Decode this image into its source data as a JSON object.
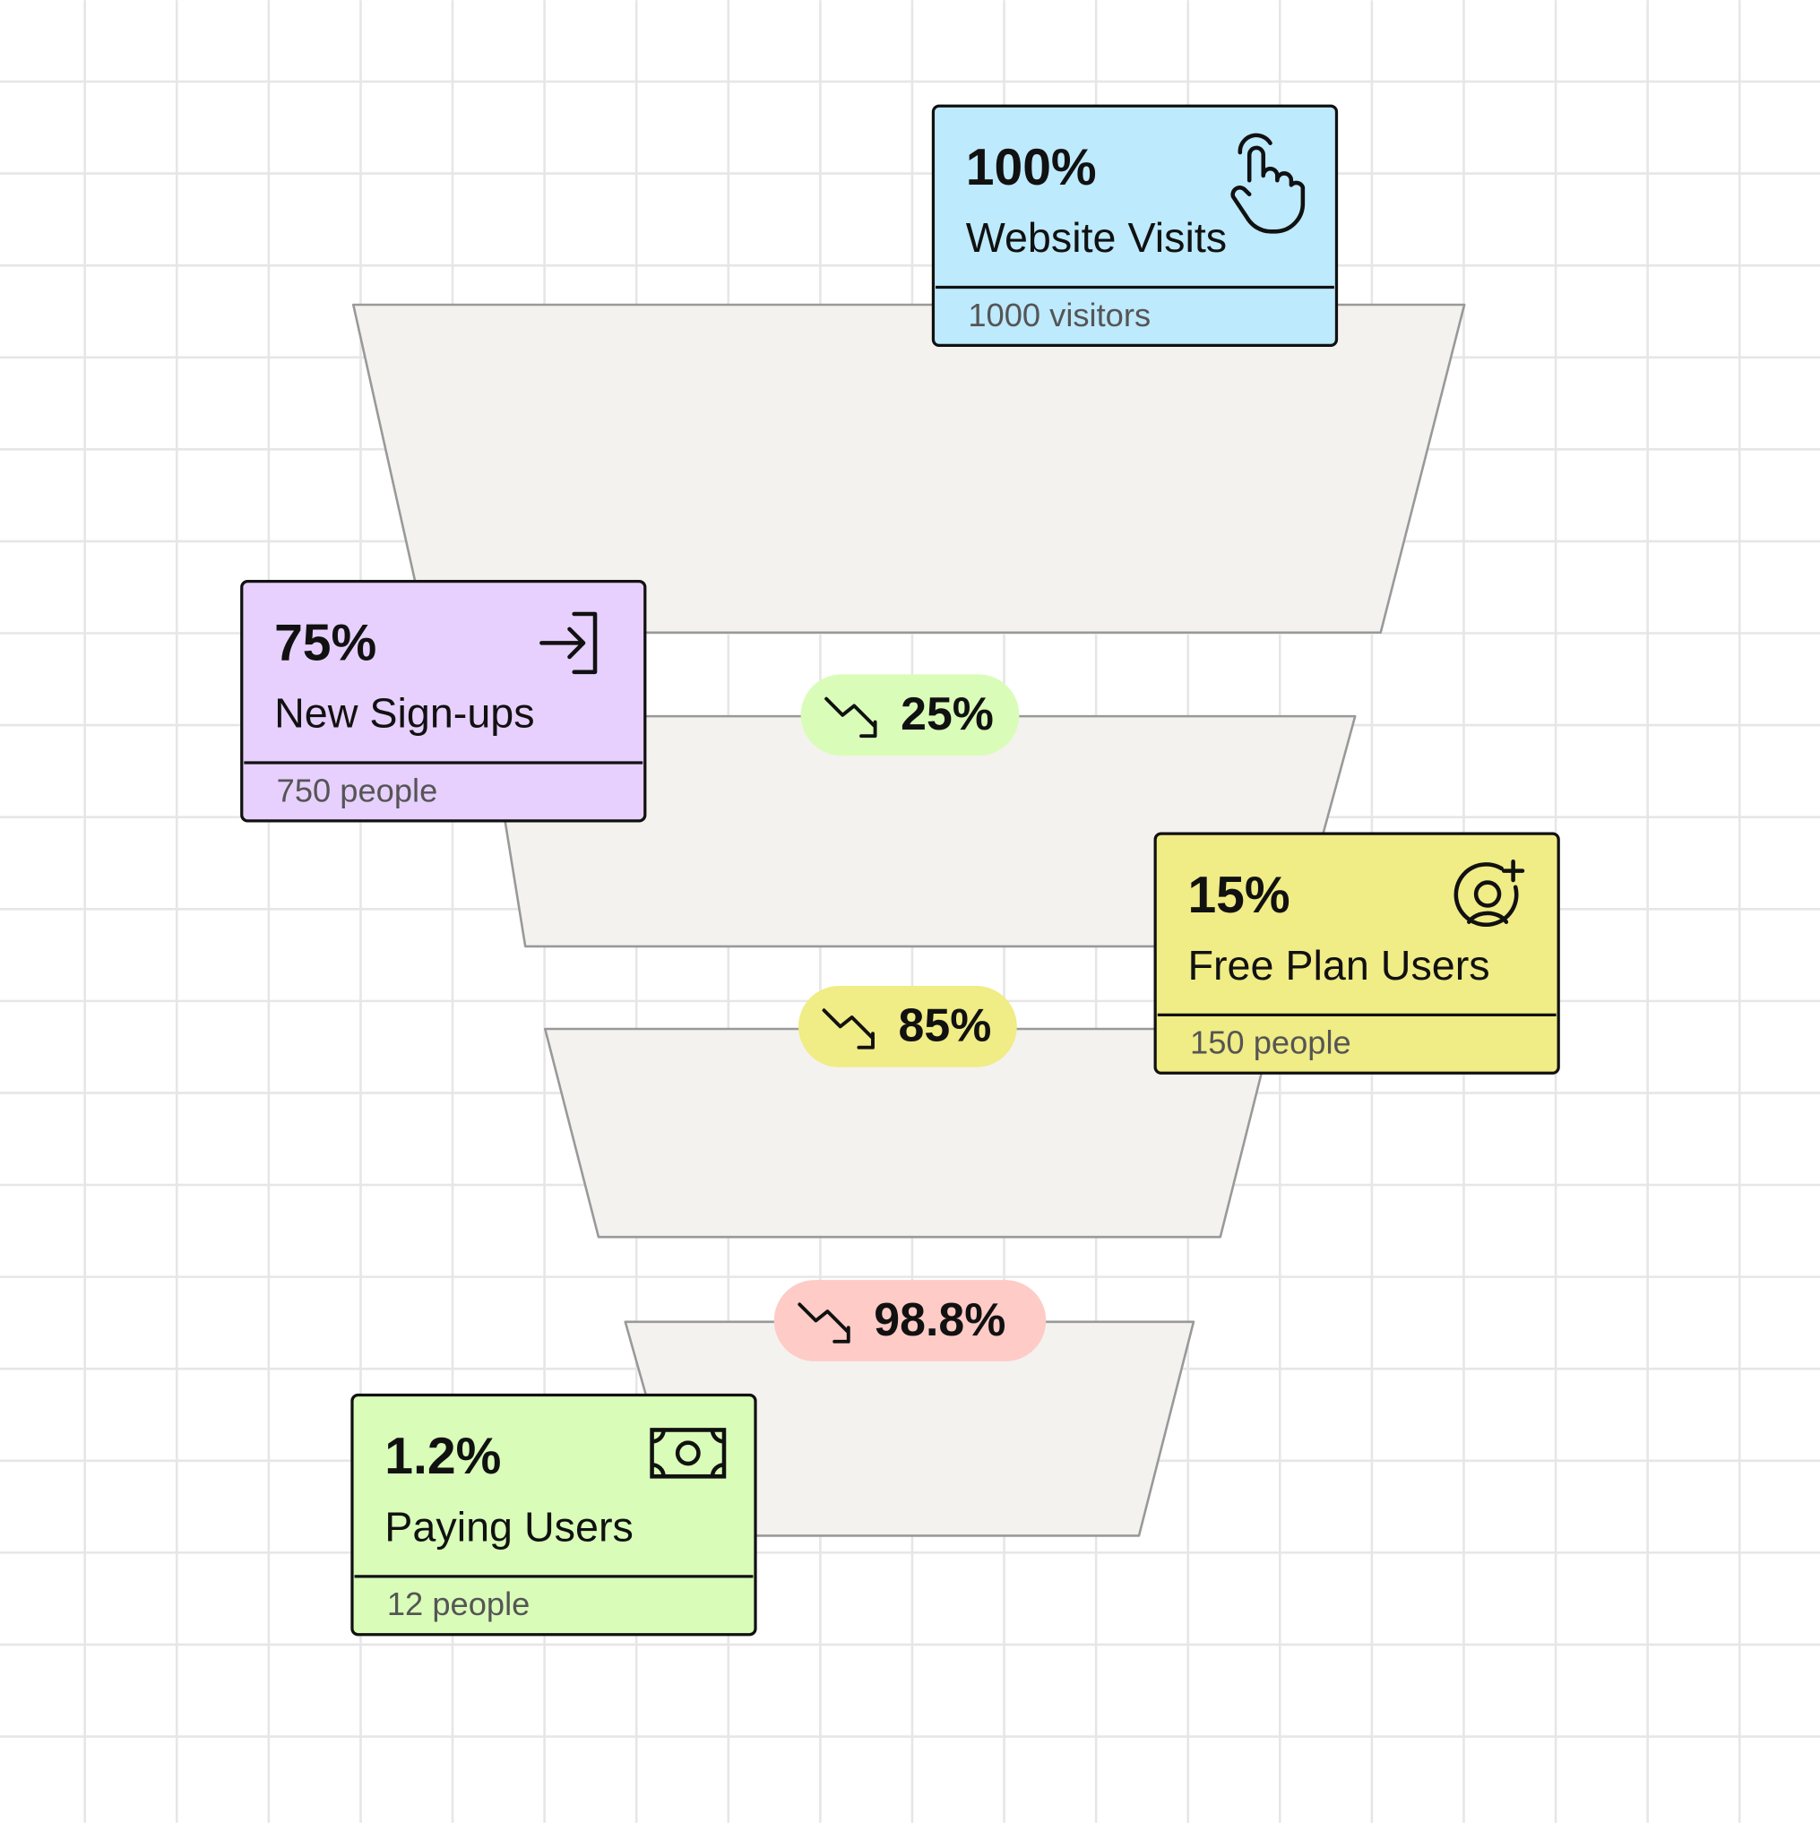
{
  "stages": [
    {
      "percent": "100%",
      "label": "Website Visits",
      "count": "1000 visitors"
    },
    {
      "percent": "75%",
      "label": "New Sign-ups",
      "count": "750 people"
    },
    {
      "percent": "15%",
      "label": "Free Plan Users",
      "count": "150 people"
    },
    {
      "percent": "1.2%",
      "label": "Paying Users",
      "count": "12 people"
    }
  ],
  "drops": [
    "25%",
    "85%",
    "98.8%"
  ]
}
